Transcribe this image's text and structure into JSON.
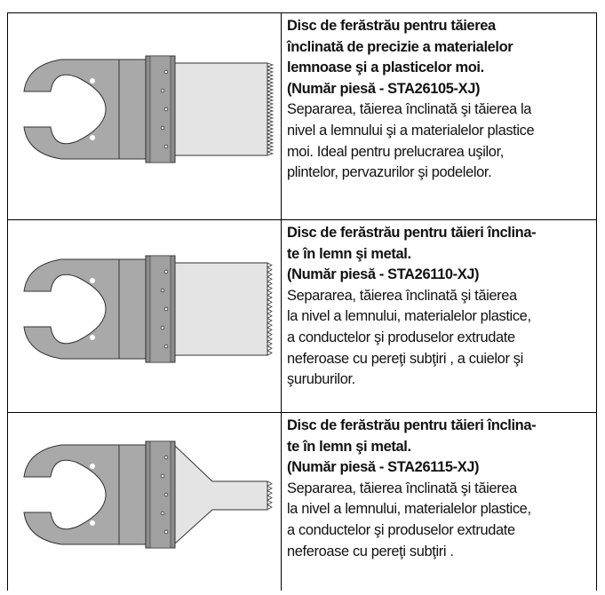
{
  "table": {
    "rows": [
      {
        "title_lines": [
          "Disc de ferăstrău pentru tăierea",
          "înclinată de precizie a materialelor",
          "lemnoase şi a plasticelor moi."
        ],
        "part_number": "(Număr piesă - STA26105-XJ)",
        "description_lines": [
          "Separarea, tăierea înclinată şi tăierea la",
          "nivel a lemnului şi a materialelor plastice",
          "moi. Ideal pentru prelucrarea uşilor,",
          "plintelor, pervazurilor şi podelelor."
        ]
      },
      {
        "title_lines": [
          "Disc de ferăstrău pentru tăieri înclina-",
          "te în lemn şi metal."
        ],
        "part_number": "(Număr piesă - STA26110-XJ)",
        "description_lines": [
          "Separarea, tăierea înclinată şi tăierea",
          "la nivel a lemnului, materialelor plastice,",
          "a conductelor şi produselor extrudate",
          "neferoase cu pereţi subţiri , a cuielor şi",
          "şuruburilor."
        ]
      },
      {
        "title_lines": [
          "Disc de ferăstrău pentru tăieri înclina-",
          "te în lemn şi metal."
        ],
        "part_number": "(Număr piesă - STA26115-XJ)",
        "description_lines": [
          "Separarea, tăierea înclinată şi tăierea",
          "la nivel a lemnului, materialelor plastice,",
          "a conductelor şi produselor extrudate",
          "neferoase cu pereţi subţiri ."
        ]
      }
    ]
  }
}
